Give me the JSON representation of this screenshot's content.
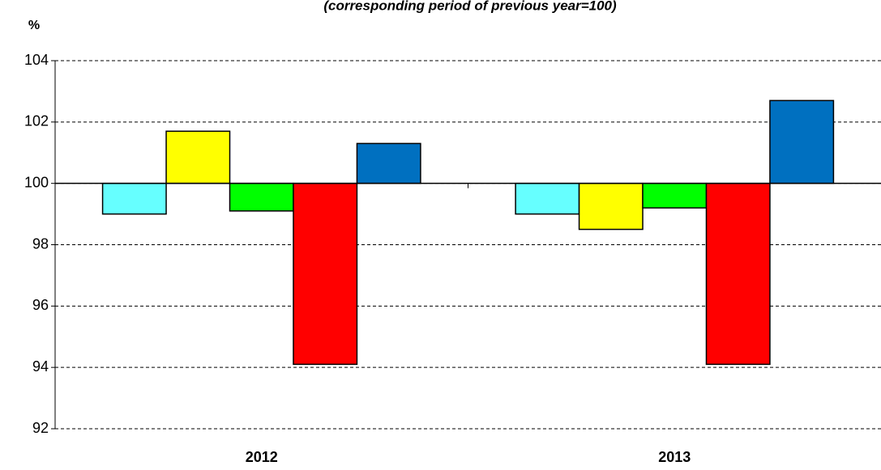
{
  "chart_data": {
    "type": "bar",
    "subtitle": "(corresponding  period of previous  year=100)",
    "y_label": "%",
    "categories": [
      "2012",
      "2013"
    ],
    "series": [
      {
        "color": "#66ffff",
        "values": [
          99.0,
          99.0
        ]
      },
      {
        "color": "#ffff00",
        "values": [
          101.7,
          98.5
        ]
      },
      {
        "color": "#00ff00",
        "values": [
          99.1,
          99.2
        ]
      },
      {
        "color": "#ff0000",
        "values": [
          94.1,
          94.1
        ]
      },
      {
        "color": "#0070c0",
        "values": [
          101.3,
          102.7
        ]
      }
    ],
    "ylim": [
      92,
      104
    ],
    "yticks": [
      92,
      94,
      96,
      98,
      100,
      102,
      104
    ],
    "x_axis_at": 100,
    "grid": true
  }
}
